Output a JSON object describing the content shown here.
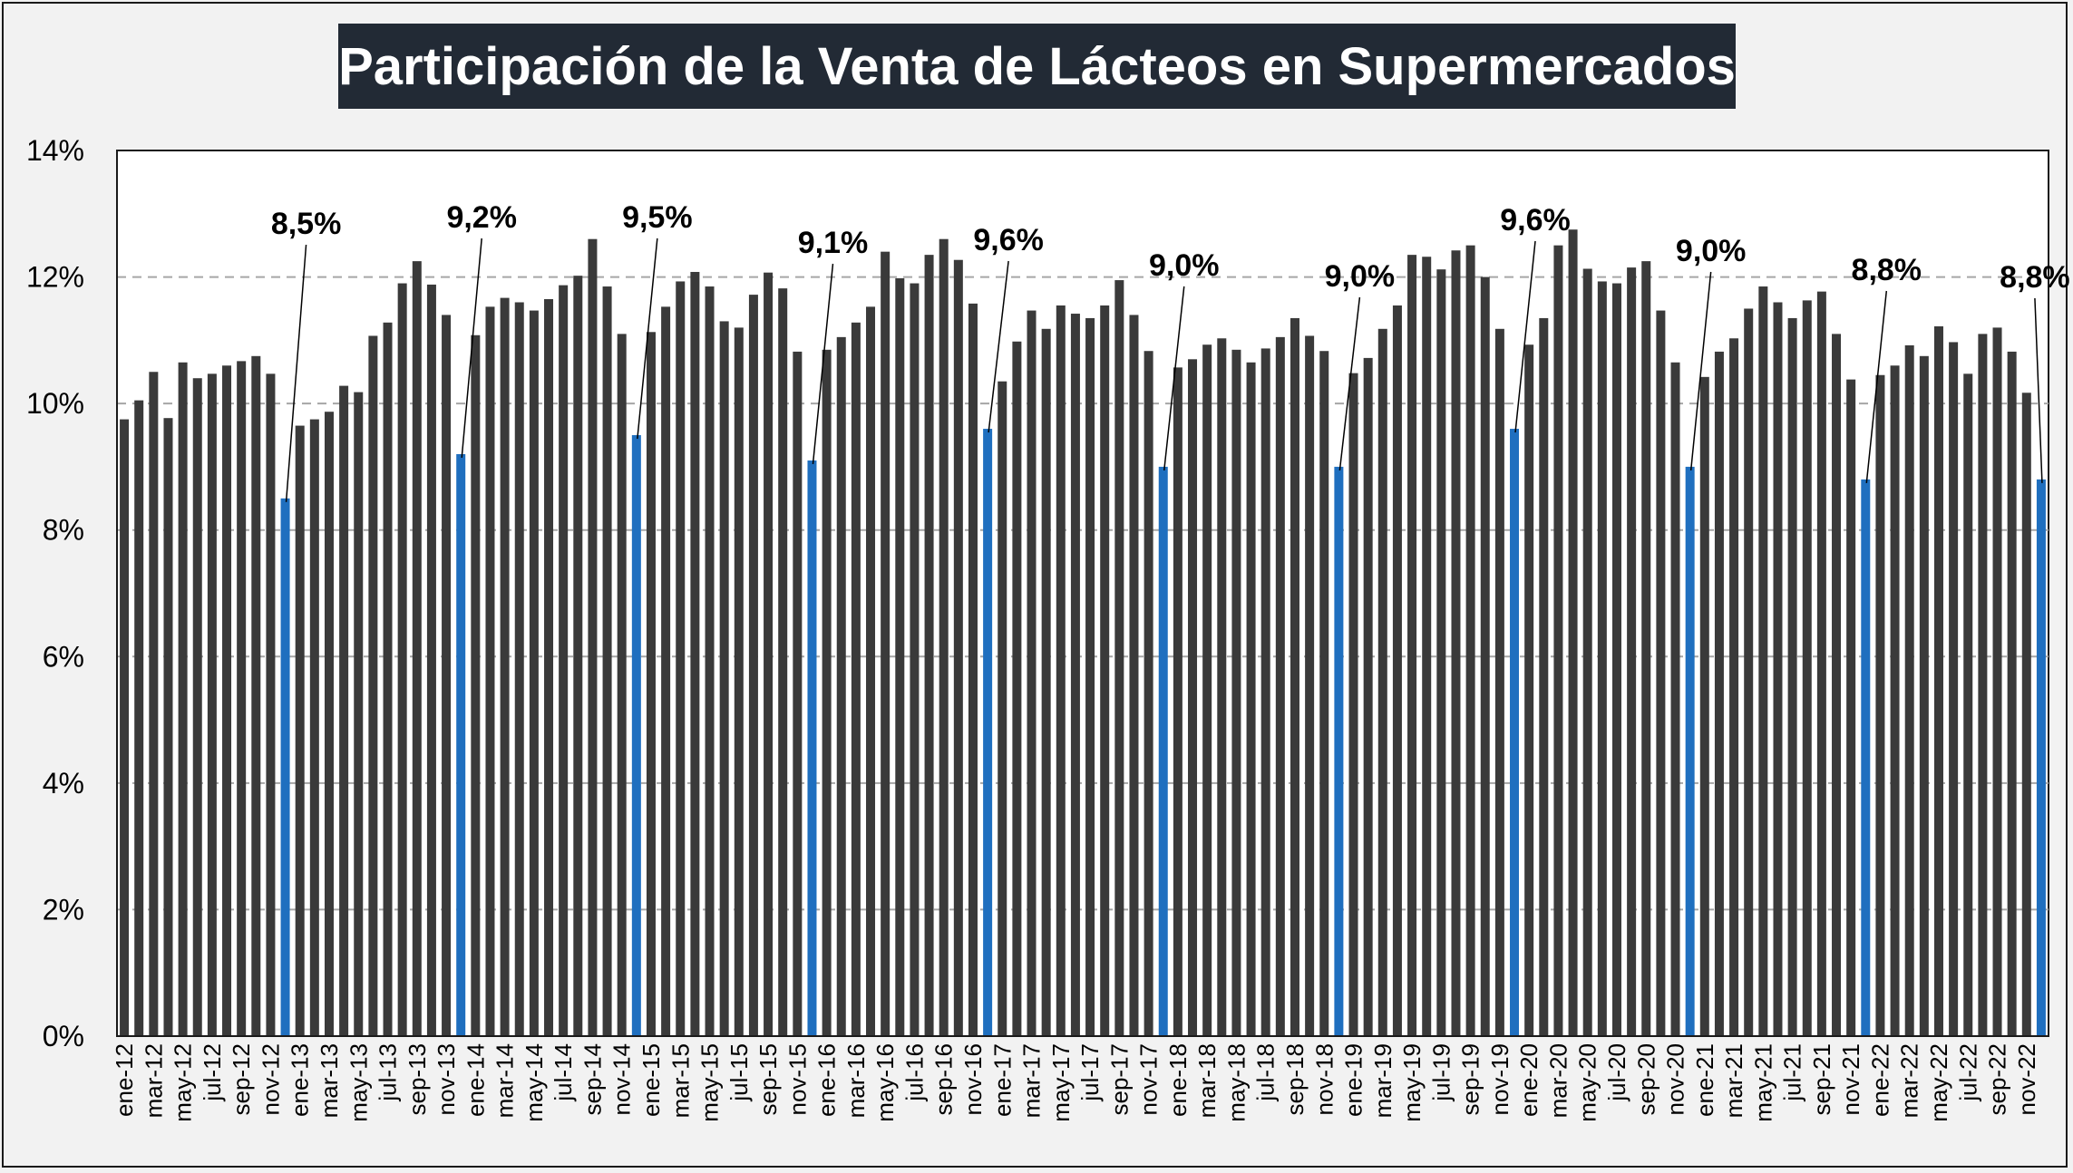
{
  "title": "Participación de la Venta de Lácteos en Supermercados",
  "colors": {
    "bar": "#3a3a3a",
    "highlight": "#1f6fbf",
    "title_bg": "#222a35",
    "title_text": "#ffffff",
    "grid": "#a6a6a6",
    "background": "#f2f2f2",
    "plot_bg": "#ffffff"
  },
  "chart_data": {
    "type": "bar",
    "title": "Participación de la Venta de Lácteos en Supermercados",
    "xlabel": "",
    "ylabel": "",
    "ylim": [
      0,
      14
    ],
    "y_ticks": [
      "0%",
      "2%",
      "4%",
      "6%",
      "8%",
      "10%",
      "12%",
      "14%"
    ],
    "grid": "horizontal dashed",
    "legend": "none",
    "tick_labels": [
      "ene-12",
      "mar-12",
      "may-12",
      "jul-12",
      "sep-12",
      "nov-12",
      "ene-13",
      "mar-13",
      "may-13",
      "jul-13",
      "sep-13",
      "nov-13",
      "ene-14",
      "mar-14",
      "may-14",
      "jul-14",
      "sep-14",
      "nov-14",
      "ene-15",
      "mar-15",
      "may-15",
      "jul-15",
      "sep-15",
      "nov-15",
      "ene-16",
      "mar-16",
      "may-16",
      "jul-16",
      "sep-16",
      "nov-16",
      "ene-17",
      "mar-17",
      "may-17",
      "jul-17",
      "sep-17",
      "nov-17",
      "ene-18",
      "mar-18",
      "may-18",
      "jul-18",
      "sep-18",
      "nov-18",
      "ene-19",
      "mar-19",
      "may-19",
      "jul-19",
      "sep-19",
      "nov-19",
      "ene-20",
      "mar-20",
      "may-20",
      "jul-20",
      "sep-20",
      "nov-20",
      "ene-21",
      "mar-21",
      "may-21",
      "jul-21",
      "sep-21",
      "nov-21",
      "ene-22",
      "mar-22",
      "may-22",
      "jul-22",
      "sep-22",
      "nov-22"
    ],
    "values": [
      9.75,
      10.05,
      10.5,
      9.77,
      10.65,
      10.4,
      10.47,
      10.6,
      10.67,
      10.75,
      10.47,
      8.5,
      9.65,
      9.75,
      9.87,
      10.28,
      10.18,
      11.07,
      11.28,
      11.9,
      12.25,
      11.88,
      11.4,
      9.2,
      11.08,
      11.53,
      11.67,
      11.6,
      11.47,
      11.65,
      11.87,
      12.02,
      12.6,
      11.85,
      11.1,
      9.5,
      11.13,
      11.53,
      11.93,
      12.08,
      11.85,
      11.3,
      11.2,
      11.72,
      12.07,
      11.82,
      10.82,
      9.1,
      10.85,
      11.05,
      11.28,
      11.53,
      12.4,
      11.98,
      11.9,
      12.35,
      12.6,
      12.27,
      11.58,
      9.6,
      10.35,
      10.98,
      11.47,
      11.18,
      11.55,
      11.42,
      11.35,
      11.55,
      11.95,
      11.4,
      10.83,
      9.0,
      10.57,
      10.7,
      10.93,
      11.03,
      10.85,
      10.65,
      10.87,
      11.05,
      11.35,
      11.07,
      10.83,
      9.0,
      10.48,
      10.72,
      11.18,
      11.55,
      12.35,
      12.32,
      12.12,
      12.42,
      12.5,
      12.0,
      11.18,
      9.6,
      10.93,
      11.35,
      12.5,
      12.75,
      12.13,
      11.93,
      11.9,
      12.15,
      12.25,
      11.47,
      10.65,
      9.0,
      10.42,
      10.82,
      11.03,
      11.5,
      11.85,
      11.6,
      11.35,
      11.63,
      11.77,
      11.1,
      10.38,
      8.8,
      10.45,
      10.6,
      10.92,
      10.75,
      11.22,
      10.97,
      10.47,
      11.1,
      11.2,
      10.82,
      10.17,
      8.8
    ],
    "highlighted_indices": [
      11,
      23,
      35,
      47,
      59,
      71,
      83,
      95,
      107,
      119,
      131
    ],
    "data_labels": [
      {
        "index": 11,
        "text": "8,5%"
      },
      {
        "index": 23,
        "text": "9,2%"
      },
      {
        "index": 35,
        "text": "9,5%"
      },
      {
        "index": 47,
        "text": "9,1%"
      },
      {
        "index": 59,
        "text": "9,6%"
      },
      {
        "index": 71,
        "text": "9,0%"
      },
      {
        "index": 83,
        "text": "9,0%"
      },
      {
        "index": 95,
        "text": "9,6%"
      },
      {
        "index": 107,
        "text": "9,0%"
      },
      {
        "index": 119,
        "text": "8,8%"
      },
      {
        "index": 131,
        "text": "8,8%"
      }
    ]
  }
}
